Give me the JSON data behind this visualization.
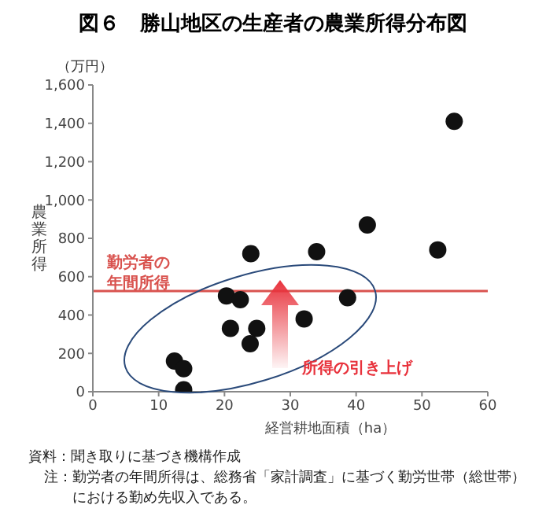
{
  "chart_data": {
    "type": "scatter",
    "title": "図６　勝山地区の生産者の農業所得分布図",
    "xlabel": "経営耕地面積（ha）",
    "ylabel": "農業所得",
    "series": [
      {
        "color": "#111111",
        "x": [
          12.4,
          13.8,
          13.8,
          20.3,
          20.9,
          22.4,
          23.9,
          24.0,
          24.9,
          32.1,
          34.0,
          38.7,
          41.7,
          52.4,
          54.9
        ],
        "values": [
          160,
          120,
          10,
          500,
          330,
          480,
          250,
          720,
          330,
          380,
          730,
          490,
          870,
          740,
          1410
        ]
      }
    ],
    "xlim": [
      0,
      60
    ],
    "xticks": [
      0,
      10,
      20,
      30,
      40,
      50,
      60
    ],
    "ylim": [
      0,
      1600
    ],
    "yticks": [
      0,
      200,
      400,
      600,
      800,
      {
        "value": 1000,
        "label": "1,000"
      },
      {
        "value": 1200,
        "label": "1,200"
      },
      {
        "value": 1400,
        "label": "1,400"
      },
      {
        "value": 1600,
        "label": "1,600"
      }
    ],
    "ref_lines": [
      {
        "axis": "y",
        "value": 525,
        "label": "勤労者の年間所得",
        "color": "#d9534f"
      }
    ],
    "annotations": [
      "（万円）",
      "所得の引き上げ",
      "資料：聞き取りに基づき機構作成",
      "注：勤労者の年間所得は、総務省「家計調査」に基づく勤労世帯（総世帯）における勤め先収入である。"
    ],
    "grid": false,
    "legend": false,
    "marker": "circle"
  }
}
